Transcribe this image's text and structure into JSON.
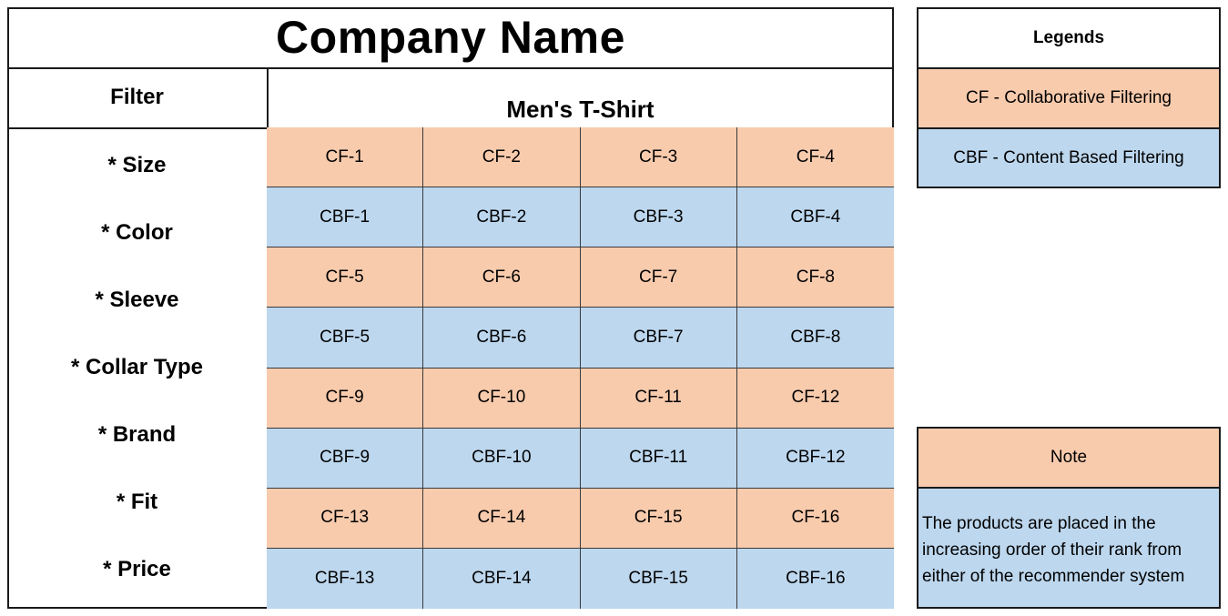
{
  "title": "Company Name",
  "filter": {
    "header": "Filter",
    "items": [
      "* Size",
      "* Color",
      "* Sleeve",
      "* Collar Type",
      "* Brand",
      "* Fit",
      "* Price"
    ]
  },
  "products": {
    "header": "Men's T-Shirt",
    "rows": [
      {
        "type": "cf",
        "cells": [
          "CF-1",
          "CF-2",
          "CF-3",
          "CF-4"
        ]
      },
      {
        "type": "cbf",
        "cells": [
          "CBF-1",
          "CBF-2",
          "CBF-3",
          "CBF-4"
        ]
      },
      {
        "type": "cf",
        "cells": [
          "CF-5",
          "CF-6",
          "CF-7",
          "CF-8"
        ]
      },
      {
        "type": "cbf",
        "cells": [
          "CBF-5",
          "CBF-6",
          "CBF-7",
          "CBF-8"
        ]
      },
      {
        "type": "cf",
        "cells": [
          "CF-9",
          "CF-10",
          "CF-11",
          "CF-12"
        ]
      },
      {
        "type": "cbf",
        "cells": [
          "CBF-9",
          "CBF-10",
          "CBF-11",
          "CBF-12"
        ]
      },
      {
        "type": "cf",
        "cells": [
          "CF-13",
          "CF-14",
          "CF-15",
          "CF-16"
        ]
      },
      {
        "type": "cbf",
        "cells": [
          "CBF-13",
          "CBF-14",
          "CBF-15",
          "CBF-16"
        ]
      }
    ]
  },
  "legend": {
    "title": "Legends",
    "cf": "CF - Collaborative Filtering",
    "cbf": "CBF - Content Based Filtering"
  },
  "note": {
    "title": "Note",
    "body": "The products are placed in the increasing order of their rank from either of the recommender system"
  },
  "colors": {
    "cf": "#f8cbad",
    "cbf": "#bdd7ee",
    "border": "#1a1a1a"
  }
}
